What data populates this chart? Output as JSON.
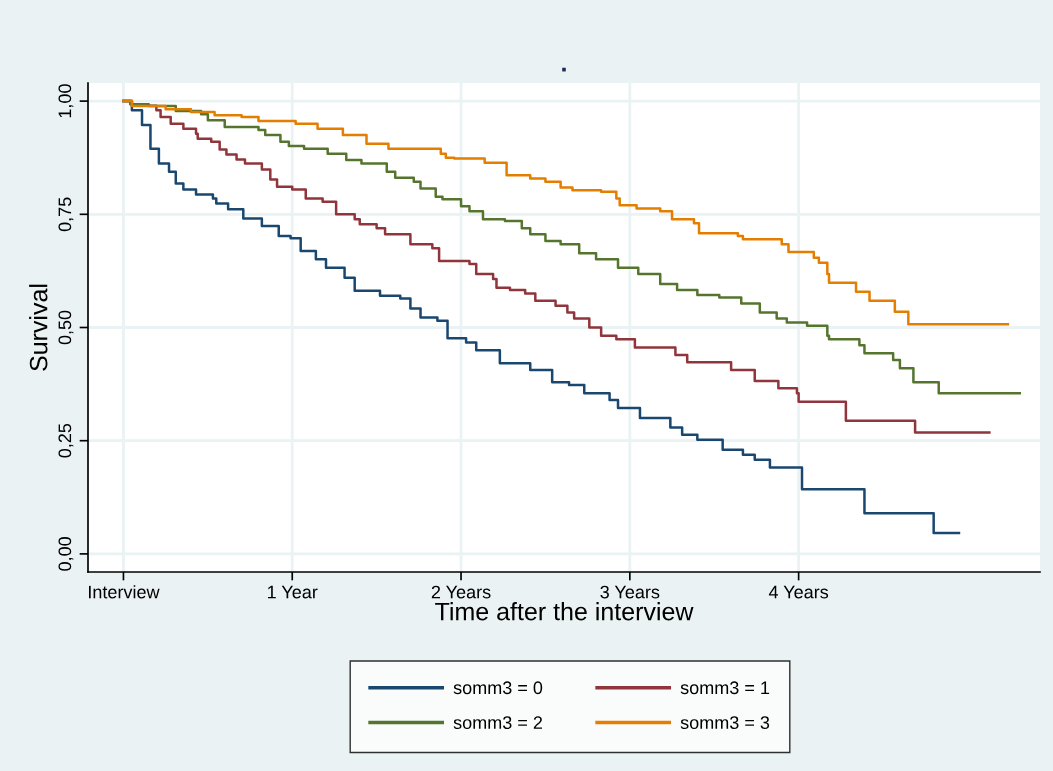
{
  "chart_data": {
    "type": "step",
    "title": ".",
    "xlabel": "Time after the interview",
    "ylabel": "Survival",
    "xlim": [
      -0.21,
      5.43
    ],
    "ylim": [
      -0.04,
      1.04
    ],
    "xticks": [
      {
        "value": 0,
        "label": "Interview"
      },
      {
        "value": 1,
        "label": "1 Year"
      },
      {
        "value": 2,
        "label": "2 Years"
      },
      {
        "value": 3,
        "label": "3 Years"
      },
      {
        "value": 4,
        "label": "4 Years"
      }
    ],
    "yticks": [
      {
        "value": 0,
        "label": "0,00"
      },
      {
        "value": 0.25,
        "label": "0,25"
      },
      {
        "value": 0.5,
        "label": "0,50"
      },
      {
        "value": 0.75,
        "label": "0,75"
      },
      {
        "value": 1,
        "label": "1,00"
      }
    ],
    "grid": true,
    "legend": "bottom",
    "line_style": "solid",
    "marker": "none",
    "series": [
      {
        "name": "somm3 = 0",
        "color": "#1a476f",
        "x": [
          0,
          0.05,
          0.11,
          0.16,
          0.21,
          0.27,
          0.31,
          0.355,
          0.43,
          0.53,
          0.55,
          0.62,
          0.71,
          0.82,
          0.92,
          0.99,
          1.05,
          1.14,
          1.2,
          1.31,
          1.37,
          1.52,
          1.64,
          1.7,
          1.76,
          1.86,
          1.92,
          2.03,
          2.09,
          2.23,
          2.41,
          2.54,
          2.64,
          2.73,
          2.88,
          2.93,
          3.06,
          3.24,
          3.31,
          3.4,
          3.55,
          3.67,
          3.74,
          3.83,
          4.02,
          4.39,
          4.8,
          4.95
        ],
        "values": [
          1.0,
          0.98,
          0.947,
          0.895,
          0.862,
          0.844,
          0.818,
          0.805,
          0.794,
          0.785,
          0.774,
          0.761,
          0.741,
          0.724,
          0.702,
          0.697,
          0.669,
          0.651,
          0.632,
          0.61,
          0.581,
          0.57,
          0.564,
          0.542,
          0.522,
          0.515,
          0.476,
          0.467,
          0.45,
          0.421,
          0.406,
          0.379,
          0.373,
          0.355,
          0.34,
          0.322,
          0.3,
          0.279,
          0.263,
          0.252,
          0.23,
          0.219,
          0.208,
          0.191,
          0.143,
          0.09,
          0.046,
          0.046
        ]
      },
      {
        "name": "somm3 = 1",
        "color": "#90353b",
        "x": [
          0,
          0.05,
          0.195,
          0.22,
          0.28,
          0.355,
          0.43,
          0.44,
          0.52,
          0.57,
          0.61,
          0.67,
          0.72,
          0.82,
          0.87,
          0.91,
          1.0,
          1.08,
          1.18,
          1.26,
          1.37,
          1.4,
          1.5,
          1.55,
          1.7,
          1.83,
          1.87,
          2.05,
          2.09,
          2.19,
          2.21,
          2.29,
          2.38,
          2.44,
          2.56,
          2.63,
          2.67,
          2.76,
          2.83,
          2.92,
          3.03,
          3.27,
          3.34,
          3.6,
          3.74,
          3.88,
          3.99,
          4.0,
          4.28,
          4.69,
          5.13
        ],
        "values": [
          1.0,
          0.99,
          0.98,
          0.965,
          0.95,
          0.939,
          0.928,
          0.917,
          0.91,
          0.893,
          0.882,
          0.871,
          0.862,
          0.849,
          0.827,
          0.811,
          0.805,
          0.785,
          0.778,
          0.75,
          0.739,
          0.728,
          0.719,
          0.706,
          0.684,
          0.675,
          0.647,
          0.64,
          0.618,
          0.607,
          0.588,
          0.583,
          0.575,
          0.559,
          0.548,
          0.533,
          0.52,
          0.5,
          0.482,
          0.474,
          0.456,
          0.439,
          0.423,
          0.406,
          0.382,
          0.366,
          0.355,
          0.336,
          0.294,
          0.268,
          0.268
        ]
      },
      {
        "name": "somm3 = 2",
        "color": "#55752f",
        "x": [
          0,
          0.04,
          0.15,
          0.31,
          0.46,
          0.5,
          0.6,
          0.8,
          0.84,
          0.93,
          0.98,
          1.07,
          1.21,
          1.32,
          1.41,
          1.56,
          1.61,
          1.72,
          1.76,
          1.85,
          1.89,
          2.0,
          2.05,
          2.13,
          2.26,
          2.36,
          2.41,
          2.5,
          2.59,
          2.7,
          2.8,
          2.93,
          3.05,
          3.18,
          3.28,
          3.4,
          3.53,
          3.66,
          3.77,
          3.87,
          3.93,
          4.05,
          4.17,
          4.18,
          4.36,
          4.39,
          4.56,
          4.6,
          4.68,
          4.83,
          5.31
        ],
        "values": [
          1.0,
          0.993,
          0.989,
          0.978,
          0.971,
          0.958,
          0.943,
          0.936,
          0.925,
          0.91,
          0.901,
          0.895,
          0.884,
          0.87,
          0.862,
          0.844,
          0.831,
          0.822,
          0.807,
          0.789,
          0.783,
          0.768,
          0.757,
          0.739,
          0.735,
          0.719,
          0.706,
          0.691,
          0.684,
          0.664,
          0.651,
          0.632,
          0.618,
          0.596,
          0.583,
          0.572,
          0.566,
          0.553,
          0.533,
          0.52,
          0.511,
          0.504,
          0.482,
          0.474,
          0.461,
          0.443,
          0.428,
          0.41,
          0.379,
          0.355,
          0.355
        ]
      },
      {
        "name": "somm3 = 3",
        "color": "#e37e00",
        "x": [
          0,
          0.05,
          0.25,
          0.4,
          0.54,
          0.7,
          0.8,
          1.02,
          1.15,
          1.3,
          1.44,
          1.57,
          1.88,
          1.91,
          1.96,
          2.14,
          2.27,
          2.41,
          2.5,
          2.59,
          2.66,
          2.83,
          2.92,
          2.94,
          3.04,
          3.18,
          3.25,
          3.38,
          3.41,
          3.64,
          3.67,
          3.9,
          3.94,
          4.09,
          4.12,
          4.17,
          4.18,
          4.34,
          4.42,
          4.57,
          4.65,
          5.24
        ],
        "values": [
          1.0,
          0.989,
          0.982,
          0.976,
          0.969,
          0.965,
          0.956,
          0.95,
          0.939,
          0.925,
          0.906,
          0.895,
          0.884,
          0.875,
          0.873,
          0.864,
          0.836,
          0.829,
          0.822,
          0.809,
          0.803,
          0.8,
          0.785,
          0.77,
          0.763,
          0.757,
          0.739,
          0.73,
          0.708,
          0.702,
          0.695,
          0.684,
          0.667,
          0.654,
          0.643,
          0.618,
          0.599,
          0.579,
          0.559,
          0.535,
          0.507,
          0.507
        ]
      }
    ]
  }
}
